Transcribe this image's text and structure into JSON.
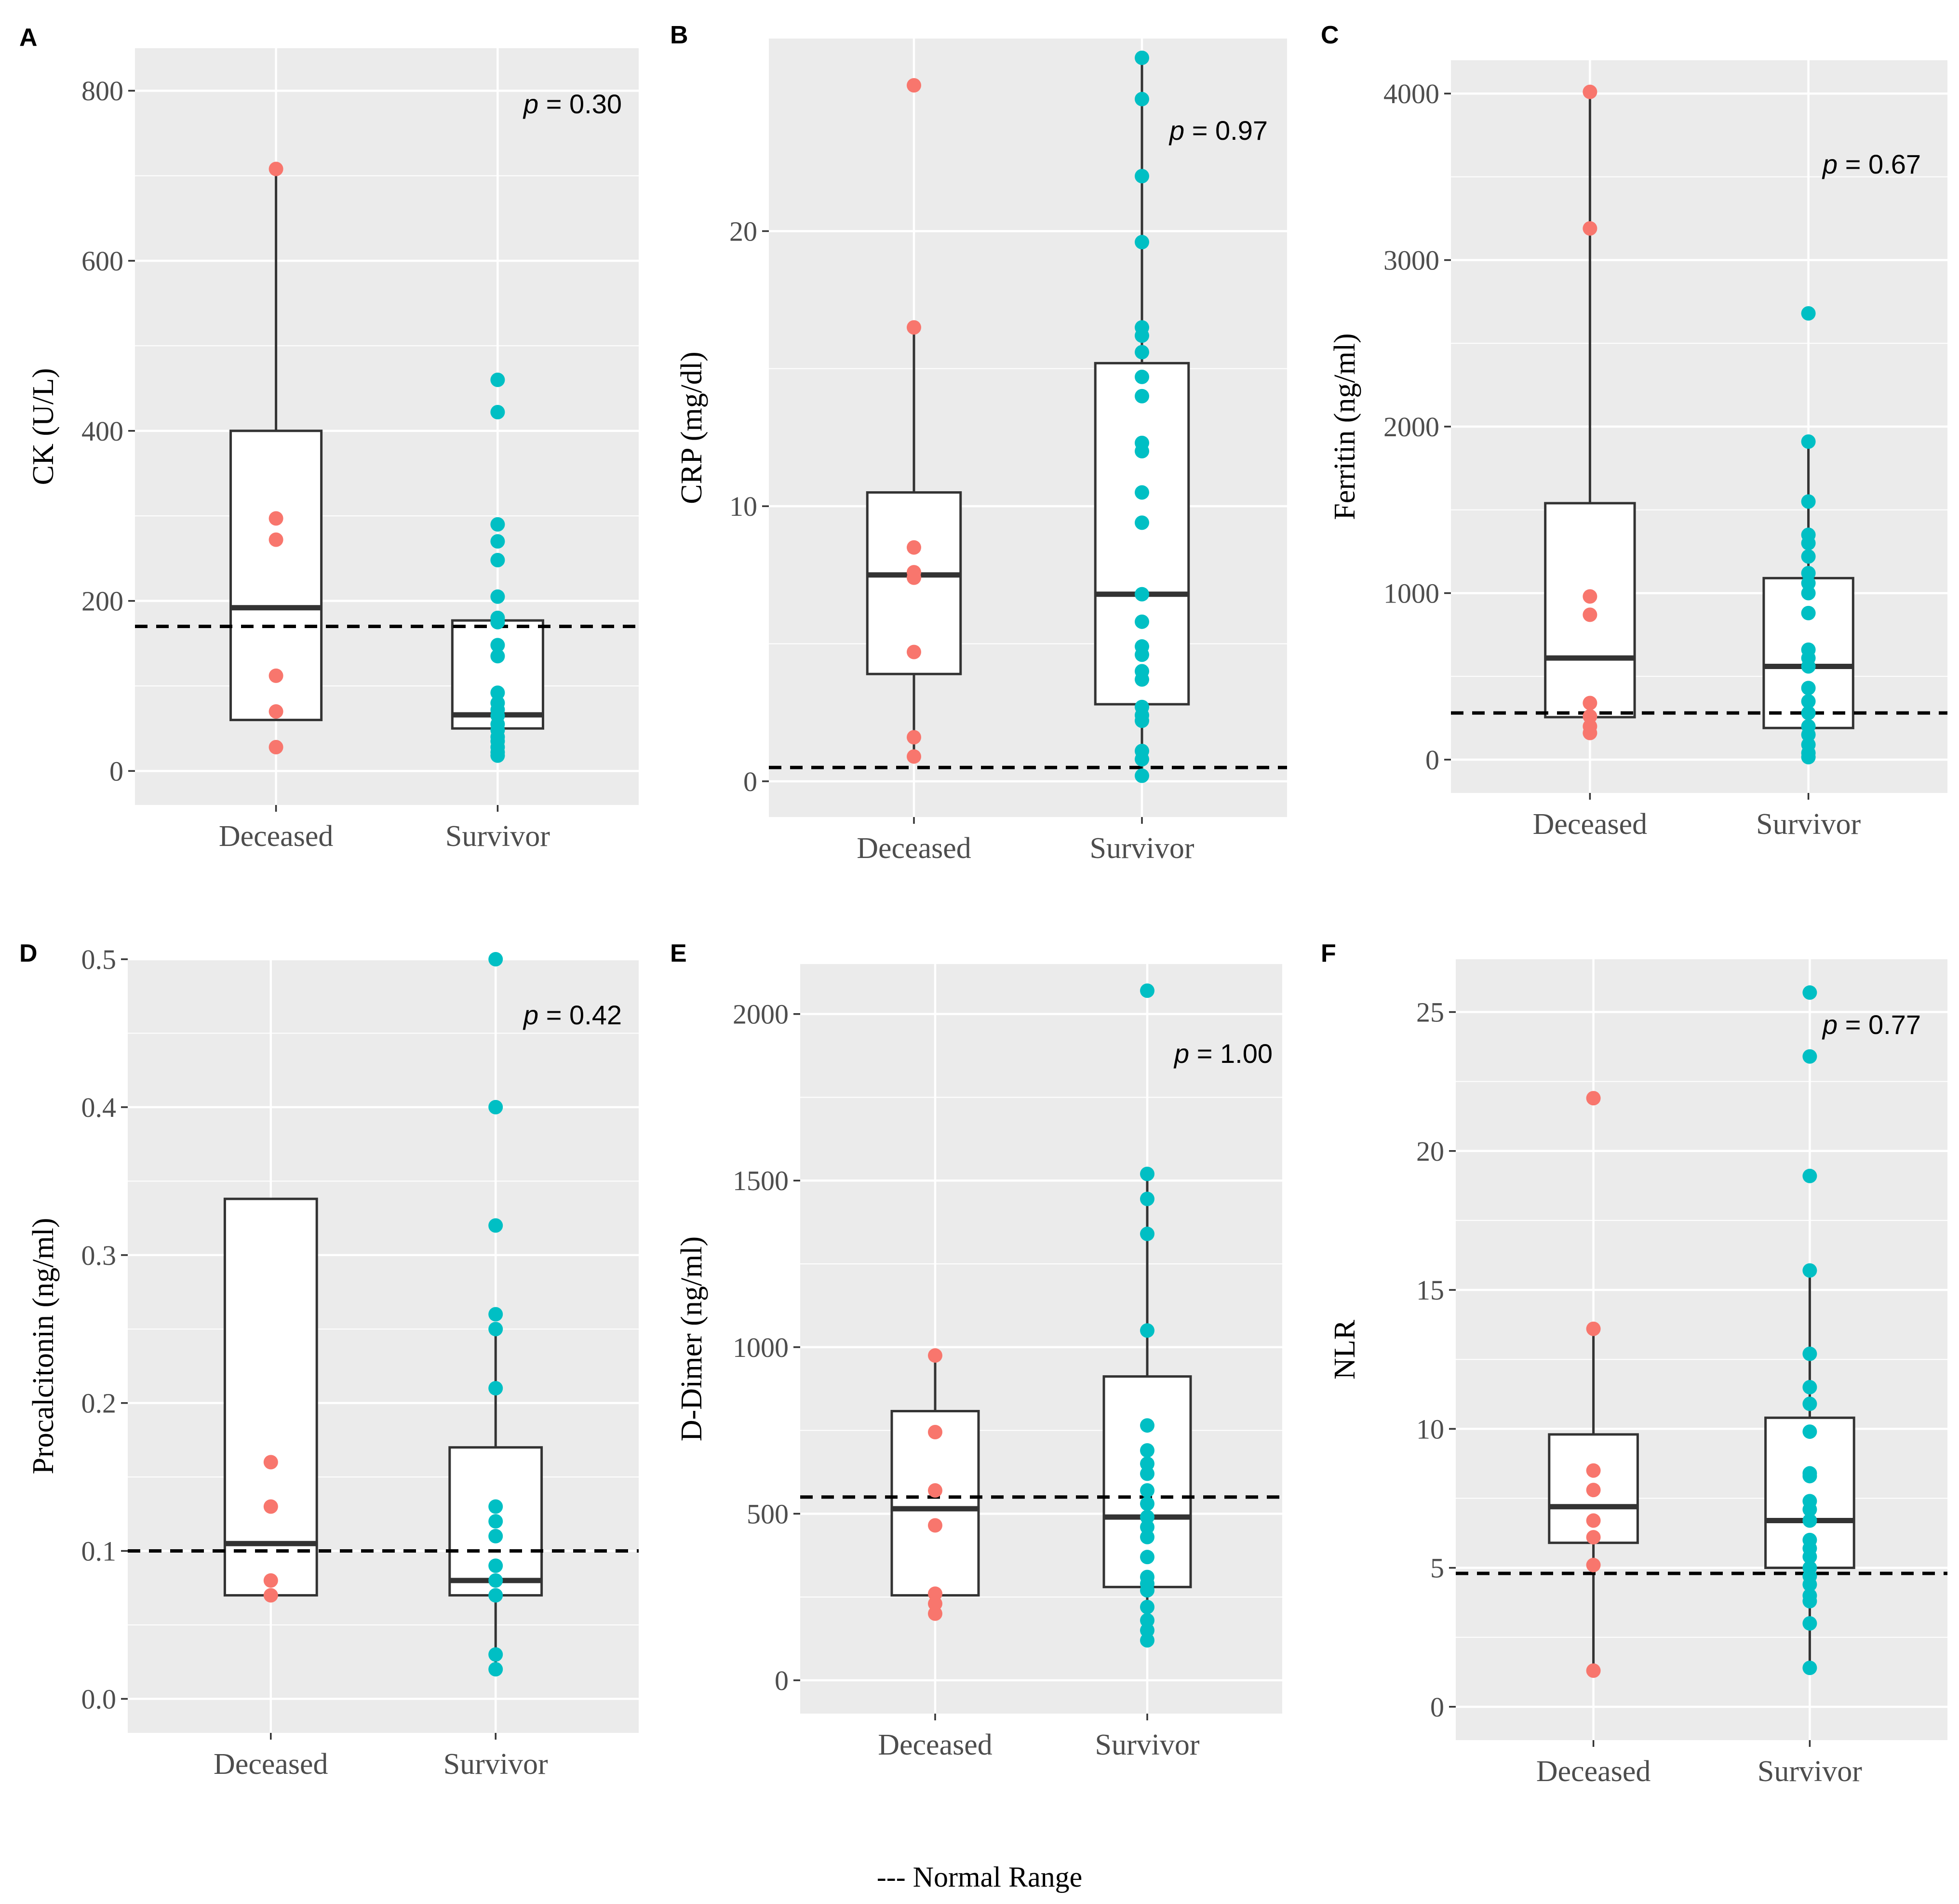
{
  "legend_label": "--- Normal Range",
  "colors": {
    "deceased": "#F8766D",
    "survivor": "#00BFC4",
    "panel_bg": "#EBEBEB",
    "grid": "#FFFFFF",
    "box_line": "#333333"
  },
  "chart_data": [
    {
      "type": "box",
      "panel_label": "A",
      "ylabel": "CK (U/L)",
      "categories": [
        "Deceased",
        "Survivor"
      ],
      "ylim": [
        -40,
        850
      ],
      "yticks": [
        0,
        200,
        400,
        600,
        800
      ],
      "normal_range": 170,
      "p_text": "= 0.30",
      "boxes": [
        {
          "q1": 60,
          "median": 192,
          "q3": 400,
          "whisker_low": 60,
          "whisker_high": 708
        },
        {
          "q1": 50,
          "median": 66,
          "q3": 177,
          "whisker_low": 50,
          "whisker_high": 177
        }
      ],
      "points": [
        [
          708,
          297,
          272,
          112,
          70,
          28
        ],
        [
          460,
          422,
          290,
          270,
          248,
          205,
          180,
          175,
          148,
          135,
          92,
          80,
          72,
          65,
          55,
          48,
          40,
          35,
          28,
          22,
          18
        ]
      ]
    },
    {
      "type": "box",
      "panel_label": "B",
      "ylabel": "CRP (mg/dl)",
      "categories": [
        "Deceased",
        "Survivor"
      ],
      "ylim": [
        -1.3,
        27
      ],
      "yticks": [
        0,
        10,
        20
      ],
      "normal_range": 0.5,
      "p_text": "= 0.97",
      "boxes": [
        {
          "q1": 3.9,
          "median": 7.5,
          "q3": 10.5,
          "whisker_low": 0.9,
          "whisker_high": 16.4
        },
        {
          "q1": 2.8,
          "median": 6.8,
          "q3": 15.2,
          "whisker_low": 0.2,
          "whisker_high": 26.3
        }
      ],
      "points": [
        [
          25.3,
          16.5,
          8.5,
          7.6,
          7.4,
          4.7,
          1.6,
          0.9
        ],
        [
          26.3,
          24.8,
          22.0,
          19.6,
          16.5,
          16.2,
          15.6,
          14.7,
          14.0,
          12.3,
          12.0,
          10.5,
          9.4,
          6.8,
          5.8,
          4.9,
          4.6,
          4.0,
          3.7,
          2.7,
          2.4,
          2.2,
          1.1,
          0.8,
          0.2
        ]
      ]
    },
    {
      "type": "box",
      "panel_label": "C",
      "ylabel": "Ferritin (ng/ml)",
      "categories": [
        "Deceased",
        "Survivor"
      ],
      "ylim": [
        -200,
        4200
      ],
      "yticks": [
        0,
        1000,
        2000,
        3000,
        4000
      ],
      "normal_range": 280,
      "p_text": "= 0.67",
      "boxes": [
        {
          "q1": 255,
          "median": 610,
          "q3": 1540,
          "whisker_low": 150,
          "whisker_high": 4010
        },
        {
          "q1": 190,
          "median": 560,
          "q3": 1090,
          "whisker_low": 20,
          "whisker_high": 1900
        }
      ],
      "points": [
        [
          4010,
          3190,
          980,
          870,
          340,
          260,
          200,
          160
        ],
        [
          2680,
          1910,
          1550,
          1350,
          1300,
          1220,
          1120,
          1060,
          1000,
          880,
          660,
          610,
          560,
          430,
          350,
          280,
          200,
          150,
          90,
          40,
          15
        ]
      ]
    },
    {
      "type": "box",
      "panel_label": "D",
      "ylabel": "Procalcitonin (ng/ml)",
      "categories": [
        "Deceased",
        "Survivor"
      ],
      "ylim": [
        -0.023,
        0.5
      ],
      "yticks": [
        0.0,
        0.1,
        0.2,
        0.3,
        0.4,
        0.5
      ],
      "tick_labels": [
        "0.0",
        "0.1",
        "0.2",
        "0.3",
        "0.4",
        "0.5"
      ],
      "normal_range": 0.1,
      "p_text": "= 0.42",
      "boxes": [
        {
          "q1": 0.07,
          "median": 0.105,
          "q3": 0.338,
          "whisker_low": 0.07,
          "whisker_high": 0.338
        },
        {
          "q1": 0.07,
          "median": 0.08,
          "q3": 0.17,
          "whisker_low": 0.02,
          "whisker_high": 0.25
        }
      ],
      "points": [
        [
          0.16,
          0.13,
          0.08,
          0.07
        ],
        [
          0.5,
          0.4,
          0.32,
          0.26,
          0.25,
          0.21,
          0.13,
          0.12,
          0.11,
          0.09,
          0.08,
          0.07,
          0.03,
          0.02
        ]
      ]
    },
    {
      "type": "box",
      "panel_label": "E",
      "ylabel": "D-Dimer (ng/ml)",
      "categories": [
        "Deceased",
        "Survivor"
      ],
      "ylim": [
        -100,
        2150
      ],
      "yticks": [
        0,
        500,
        1000,
        1500,
        2000
      ],
      "normal_range": 550,
      "p_text": "= 1.00",
      "boxes": [
        {
          "q1": 255,
          "median": 515,
          "q3": 808,
          "whisker_low": 200,
          "whisker_high": 975
        },
        {
          "q1": 280,
          "median": 490,
          "q3": 912,
          "whisker_low": 120,
          "whisker_high": 1520
        }
      ],
      "points": [
        [
          975,
          745,
          570,
          465,
          260,
          230,
          200
        ],
        [
          2070,
          1520,
          1445,
          1340,
          1050,
          765,
          690,
          650,
          620,
          570,
          530,
          490,
          460,
          430,
          370,
          310,
          290,
          270,
          220,
          180,
          150,
          120
        ]
      ]
    },
    {
      "type": "box",
      "panel_label": "F",
      "ylabel": "NLR",
      "categories": [
        "Deceased",
        "Survivor"
      ],
      "ylim": [
        -1.2,
        26.9
      ],
      "yticks": [
        0,
        5,
        10,
        15,
        20,
        25
      ],
      "normal_range": 4.8,
      "p_text": "= 0.77",
      "boxes": [
        {
          "q1": 5.9,
          "median": 7.2,
          "q3": 9.8,
          "whisker_low": 1.3,
          "whisker_high": 13.6
        },
        {
          "q1": 5.0,
          "median": 6.7,
          "q3": 10.4,
          "whisker_low": 1.4,
          "whisker_high": 15.7
        }
      ],
      "points": [
        [
          21.9,
          13.6,
          8.5,
          7.8,
          6.7,
          6.1,
          5.1,
          1.3
        ],
        [
          25.7,
          23.4,
          19.1,
          15.7,
          12.7,
          11.5,
          10.9,
          9.9,
          8.4,
          8.3,
          7.4,
          7.1,
          6.7,
          6.0,
          5.7,
          5.4,
          5.0,
          4.7,
          4.4,
          4.0,
          3.8,
          3.0,
          1.4
        ]
      ]
    }
  ]
}
